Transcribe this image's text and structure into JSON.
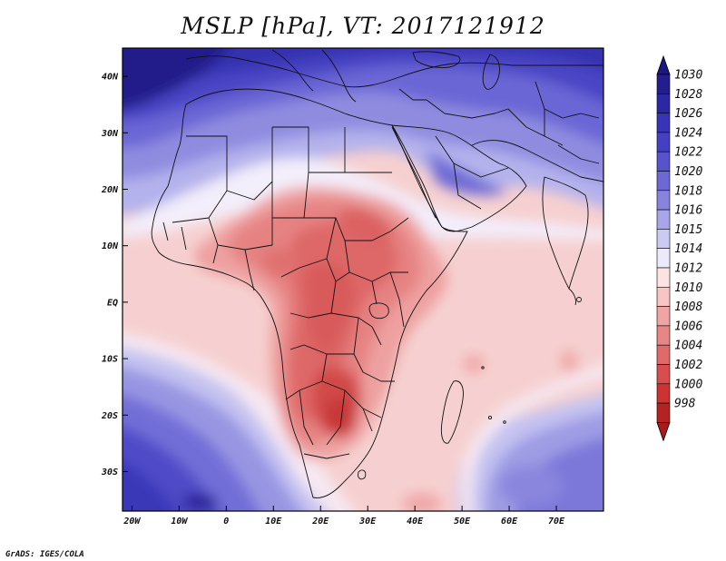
{
  "title": "MSLP [hPa], VT: 2017121912",
  "credit": "GrADS: IGES/COLA",
  "map": {
    "lon_range": [
      -22,
      80
    ],
    "lat_range": [
      -37,
      45
    ],
    "lat_labels": [
      {
        "lat": 40,
        "text": "40N"
      },
      {
        "lat": 30,
        "text": "30N"
      },
      {
        "lat": 20,
        "text": "20N"
      },
      {
        "lat": 10,
        "text": "10N"
      },
      {
        "lat": 0,
        "text": "EQ"
      },
      {
        "lat": -10,
        "text": "10S"
      },
      {
        "lat": -20,
        "text": "20S"
      },
      {
        "lat": -30,
        "text": "30S"
      }
    ],
    "lon_labels": [
      {
        "lon": -20,
        "text": "20W"
      },
      {
        "lon": -10,
        "text": "10W"
      },
      {
        "lon": 0,
        "text": "0"
      },
      {
        "lon": 10,
        "text": "10E"
      },
      {
        "lon": 20,
        "text": "20E"
      },
      {
        "lon": 30,
        "text": "30E"
      },
      {
        "lon": 40,
        "text": "40E"
      },
      {
        "lon": 50,
        "text": "50E"
      },
      {
        "lon": 60,
        "text": "60E"
      },
      {
        "lon": 70,
        "text": "70E"
      }
    ]
  },
  "colorbar": {
    "levels": [
      {
        "label": "1030",
        "color": "#231d8e"
      },
      {
        "label": "1028",
        "color": "#2c28a5"
      },
      {
        "label": "1026",
        "color": "#3834b8"
      },
      {
        "label": "1024",
        "color": "#4440c4"
      },
      {
        "label": "1022",
        "color": "#5752cd"
      },
      {
        "label": "1020",
        "color": "#6c68d6"
      },
      {
        "label": "1018",
        "color": "#8884de"
      },
      {
        "label": "1016",
        "color": "#a8a6e8"
      },
      {
        "label": "1015",
        "color": "#cacaf2"
      },
      {
        "label": "1014",
        "color": "#eaeafb"
      },
      {
        "label": "1012",
        "color": "#fde2e2"
      },
      {
        "label": "1010",
        "color": "#f8c4c4"
      },
      {
        "label": "1008",
        "color": "#f0a4a4"
      },
      {
        "label": "1006",
        "color": "#e88686"
      },
      {
        "label": "1004",
        "color": "#e06a6a"
      },
      {
        "label": "1002",
        "color": "#d84e4e"
      },
      {
        "label": "1000",
        "color": "#cc3434"
      },
      {
        "label": "998",
        "color": "#b52222"
      }
    ],
    "top_arrow_color": "#1c1680",
    "bottom_arrow_color": "#a61c1c"
  }
}
